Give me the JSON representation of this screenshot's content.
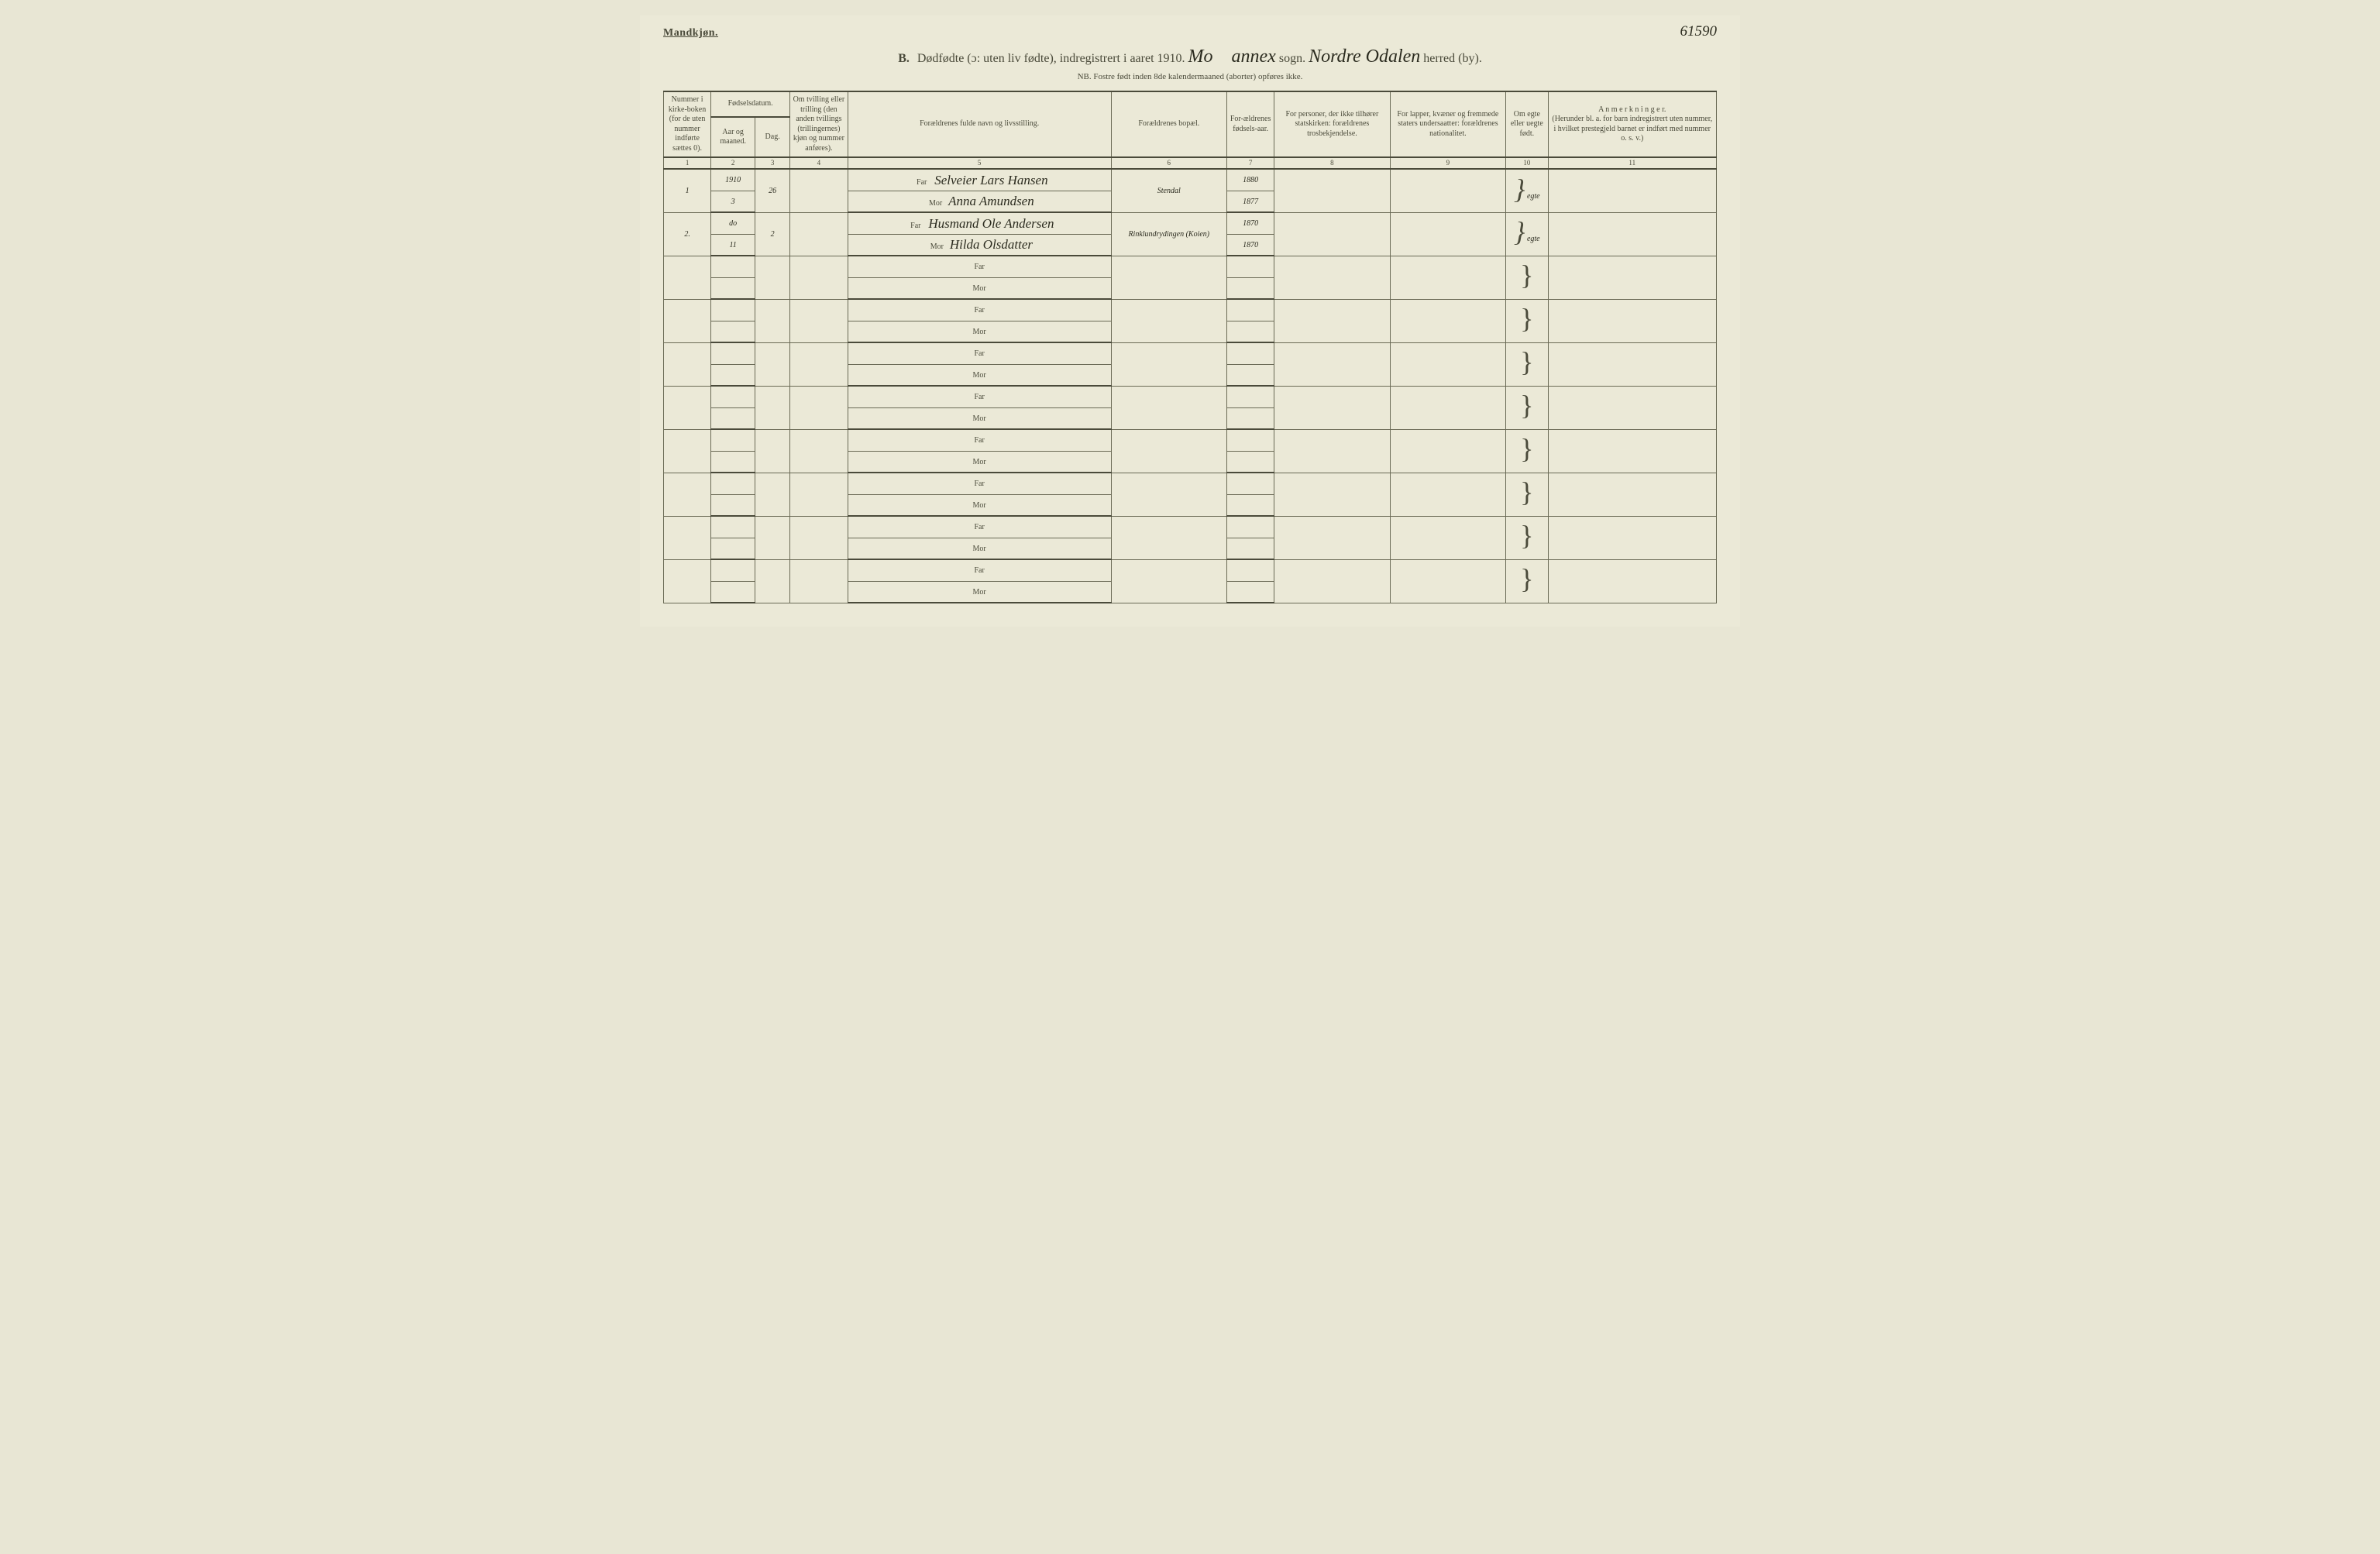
{
  "header": {
    "gender": "Mandkjøn.",
    "page_number": "61590",
    "title_prefix": "B.",
    "title_main": "Dødfødte (ɔ: uten liv fødte), indregistrert i aaret 191",
    "year_suffix": "0.",
    "sogn_hand1": "Mo",
    "sogn_mid": "annex",
    "sogn_label": "sogn.",
    "herred_hand": "Nordre Odalen",
    "herred_label": "herred (by).",
    "sub_note": "NB. Fostre født inden 8de kalendermaaned (aborter) opføres ikke."
  },
  "columns": {
    "c1": "Nummer i kirke-boken (for de uten nummer indførte sættes 0).",
    "c2_group": "Fødselsdatum.",
    "c2a": "Aar og maaned.",
    "c2b": "Dag.",
    "c3": "Om tvilling eller trilling (den anden tvillings (trillingernes) kjøn og nummer anføres).",
    "c4": "Forældrenes fulde navn og livsstilling.",
    "c5": "Forældrenes bopæl.",
    "c6": "For-ældrenes fødsels-aar.",
    "c7": "For personer, der ikke tilhører statskirken: forældrenes trosbekjendelse.",
    "c8": "For lapper, kvæner og fremmede staters undersaatter: forældrenes nationalitet.",
    "c9": "Om egte eller uegte født.",
    "c10_title": "A n m e r k n i n g e r.",
    "c10_sub": "(Herunder bl. a. for barn indregistrert uten nummer, i hvilket prestegjeld barnet er indført med nummer o. s. v.)"
  },
  "colnums": [
    "1",
    "2",
    "3",
    "4",
    "5",
    "6",
    "7",
    "8",
    "9",
    "10",
    "11"
  ],
  "labels": {
    "far": "Far",
    "mor": "Mor"
  },
  "rows": [
    {
      "num": "1",
      "aar": "1910",
      "maaned": "3",
      "dag": "26",
      "tvilling": "",
      "far": "Selveier Lars Hansen",
      "mor": "Anna Amundsen",
      "bopael": "Stendal",
      "far_aar": "1880",
      "mor_aar": "1877",
      "tros": "",
      "nat": "",
      "egte": "egte",
      "anm": ""
    },
    {
      "num": "2.",
      "aar": "do",
      "maaned": "11",
      "dag": "2",
      "tvilling": "",
      "far": "Husmand Ole Andersen",
      "mor": "Hilda Olsdatter",
      "bopael": "Rinklundrydingen (Koien)",
      "far_aar": "1870",
      "mor_aar": "1870",
      "tros": "",
      "nat": "",
      "egte": "egte",
      "anm": ""
    }
  ],
  "style": {
    "bg": "#ebe9d7",
    "ink": "#4a4a3a",
    "rule_heavy": "#4a4a3a",
    "rule_light": "#6a6a55",
    "handwriting_color": "#2b2b1f"
  }
}
